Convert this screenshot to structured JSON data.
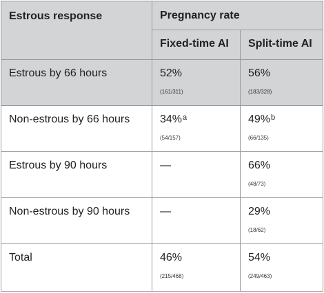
{
  "table": {
    "col1_header": "Estrous response",
    "group_header": "Pregnancy rate",
    "sub_headers": [
      "Fixed-time AI",
      "Split-time AI"
    ],
    "rows": [
      {
        "label": "Estrous by 66 hours",
        "shaded": true,
        "fixed": {
          "pct": "52%",
          "sup": "",
          "frac": "(161/311)"
        },
        "split": {
          "pct": "56%",
          "sup": "",
          "frac": "(183/328)"
        }
      },
      {
        "label": "Non-estrous by 66 hours",
        "shaded": false,
        "fixed": {
          "pct": "34%",
          "sup": "a",
          "frac": "(54/157)"
        },
        "split": {
          "pct": "49%",
          "sup": "b",
          "frac": "(66/135)"
        }
      },
      {
        "label": "Estrous by 90 hours",
        "shaded": false,
        "fixed": {
          "pct": "—",
          "sup": "",
          "frac": ""
        },
        "split": {
          "pct": "66%",
          "sup": "",
          "frac": "(48/73)"
        }
      },
      {
        "label": "Non-estrous by 90 hours",
        "shaded": false,
        "fixed": {
          "pct": "—",
          "sup": "",
          "frac": ""
        },
        "split": {
          "pct": "29%",
          "sup": "",
          "frac": "(18/62)"
        }
      },
      {
        "label": "Total",
        "shaded": false,
        "fixed": {
          "pct": "46%",
          "sup": "",
          "frac": "(215/468)"
        },
        "split": {
          "pct": "54%",
          "sup": "",
          "frac": "(249/463)"
        }
      }
    ]
  },
  "colors": {
    "header_bg": "#d3d4d6",
    "border": "#9a9a9a",
    "text": "#222222"
  }
}
